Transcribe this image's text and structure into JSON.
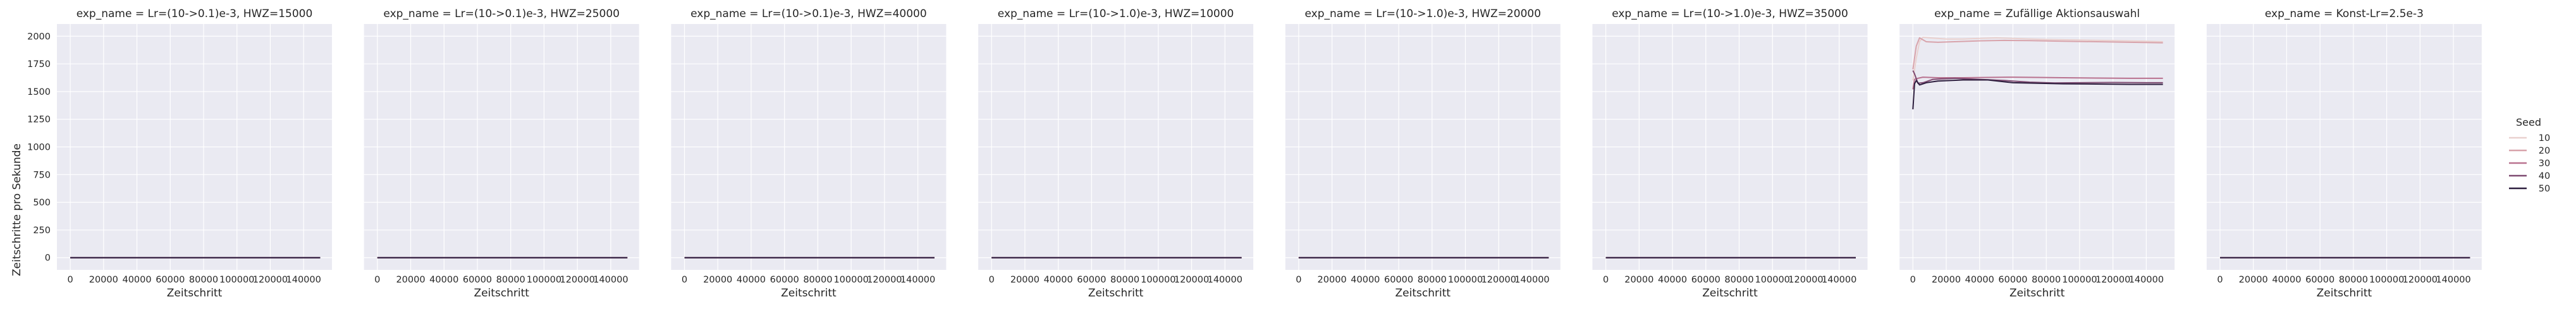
{
  "chart_data": {
    "type": "line",
    "ylabel": "Zeitschritte pro Sekunde",
    "xlabel": "Zeitschritt",
    "xlim": [
      -8000,
      157000
    ],
    "ylim": [
      -110,
      2110
    ],
    "x_ticks": [
      0,
      20000,
      40000,
      60000,
      80000,
      100000,
      120000,
      140000
    ],
    "x_tick_labels": [
      "0",
      "20000",
      "40000",
      "60000",
      "80000",
      "100000",
      "120000",
      "140000"
    ],
    "y_ticks": [
      0,
      250,
      500,
      750,
      1000,
      1250,
      1500,
      1750,
      2000
    ],
    "y_tick_labels": [
      "0",
      "250",
      "500",
      "750",
      "1000",
      "1250",
      "1500",
      "1750",
      "2000"
    ],
    "legend": {
      "title": "Seed",
      "placement": "right",
      "entries": [
        {
          "label": "10",
          "color": "#ead1cf"
        },
        {
          "label": "20",
          "color": "#d8a3ab"
        },
        {
          "label": "30",
          "color": "#b9728f"
        },
        {
          "label": "40",
          "color": "#7e4a71"
        },
        {
          "label": "50",
          "color": "#2d1e3e"
        }
      ]
    },
    "panels": [
      {
        "title": "exp_name = Lr=(10->0.1)e-3, HWZ=15000",
        "series": [
          {
            "name": "10",
            "x": [
              0,
              150000
            ],
            "y": [
              0,
              0
            ]
          },
          {
            "name": "20",
            "x": [
              0,
              150000
            ],
            "y": [
              0,
              0
            ]
          },
          {
            "name": "30",
            "x": [
              0,
              150000
            ],
            "y": [
              0,
              0
            ]
          },
          {
            "name": "40",
            "x": [
              0,
              150000
            ],
            "y": [
              0,
              0
            ]
          },
          {
            "name": "50",
            "x": [
              0,
              150000
            ],
            "y": [
              0,
              0
            ]
          }
        ]
      },
      {
        "title": "exp_name = Lr=(10->0.1)e-3, HWZ=25000",
        "series": [
          {
            "name": "10",
            "x": [
              0,
              150000
            ],
            "y": [
              0,
              0
            ]
          },
          {
            "name": "20",
            "x": [
              0,
              150000
            ],
            "y": [
              0,
              0
            ]
          },
          {
            "name": "30",
            "x": [
              0,
              150000
            ],
            "y": [
              0,
              0
            ]
          },
          {
            "name": "40",
            "x": [
              0,
              150000
            ],
            "y": [
              0,
              0
            ]
          },
          {
            "name": "50",
            "x": [
              0,
              150000
            ],
            "y": [
              0,
              0
            ]
          }
        ]
      },
      {
        "title": "exp_name = Lr=(10->0.1)e-3, HWZ=40000",
        "series": [
          {
            "name": "10",
            "x": [
              0,
              150000
            ],
            "y": [
              0,
              0
            ]
          },
          {
            "name": "20",
            "x": [
              0,
              150000
            ],
            "y": [
              0,
              0
            ]
          },
          {
            "name": "30",
            "x": [
              0,
              150000
            ],
            "y": [
              0,
              0
            ]
          },
          {
            "name": "40",
            "x": [
              0,
              150000
            ],
            "y": [
              0,
              0
            ]
          },
          {
            "name": "50",
            "x": [
              0,
              150000
            ],
            "y": [
              0,
              0
            ]
          }
        ]
      },
      {
        "title": "exp_name = Lr=(10->1.0)e-3, HWZ=10000",
        "series": [
          {
            "name": "10",
            "x": [
              0,
              150000
            ],
            "y": [
              0,
              0
            ]
          },
          {
            "name": "20",
            "x": [
              0,
              150000
            ],
            "y": [
              0,
              0
            ]
          },
          {
            "name": "30",
            "x": [
              0,
              150000
            ],
            "y": [
              0,
              0
            ]
          },
          {
            "name": "40",
            "x": [
              0,
              150000
            ],
            "y": [
              0,
              0
            ]
          },
          {
            "name": "50",
            "x": [
              0,
              150000
            ],
            "y": [
              0,
              0
            ]
          }
        ]
      },
      {
        "title": "exp_name = Lr=(10->1.0)e-3, HWZ=20000",
        "series": [
          {
            "name": "10",
            "x": [
              0,
              150000
            ],
            "y": [
              0,
              0
            ]
          },
          {
            "name": "20",
            "x": [
              0,
              150000
            ],
            "y": [
              0,
              0
            ]
          },
          {
            "name": "30",
            "x": [
              0,
              150000
            ],
            "y": [
              0,
              0
            ]
          },
          {
            "name": "40",
            "x": [
              0,
              150000
            ],
            "y": [
              0,
              0
            ]
          },
          {
            "name": "50",
            "x": [
              0,
              150000
            ],
            "y": [
              0,
              0
            ]
          }
        ]
      },
      {
        "title": "exp_name = Lr=(10->1.0)e-3, HWZ=35000",
        "series": [
          {
            "name": "10",
            "x": [
              0,
              150000
            ],
            "y": [
              0,
              0
            ]
          },
          {
            "name": "20",
            "x": [
              0,
              150000
            ],
            "y": [
              0,
              0
            ]
          },
          {
            "name": "30",
            "x": [
              0,
              150000
            ],
            "y": [
              0,
              0
            ]
          },
          {
            "name": "40",
            "x": [
              0,
              150000
            ],
            "y": [
              0,
              0
            ]
          },
          {
            "name": "50",
            "x": [
              0,
              150000
            ],
            "y": [
              0,
              0
            ]
          }
        ]
      },
      {
        "title": "exp_name = Zufällige Aktionsauswahl",
        "series": [
          {
            "name": "10",
            "x": [
              0,
              2000,
              4000,
              6000,
              10000,
              20000,
              30000,
              40000,
              50000,
              60000,
              80000,
              100000,
              120000,
              140000,
              150000
            ],
            "y": [
              1600,
              1800,
              1950,
              1990,
              1985,
              1975,
              1975,
              1980,
              1985,
              1980,
              1970,
              1965,
              1960,
              1955,
              1950
            ]
          },
          {
            "name": "20",
            "x": [
              0,
              2000,
              4000,
              8000,
              15000,
              25000,
              40000,
              55000,
              70000,
              90000,
              110000,
              130000,
              150000
            ],
            "y": [
              1700,
              1910,
              1985,
              1950,
              1945,
              1950,
              1958,
              1962,
              1960,
              1955,
              1950,
              1945,
              1940
            ]
          },
          {
            "name": "30",
            "x": [
              0,
              1000,
              3000,
              6000,
              15000,
              30000,
              45000,
              60000,
              75000,
              90000,
              110000,
              130000,
              150000
            ],
            "y": [
              1520,
              1610,
              1620,
              1630,
              1625,
              1625,
              1628,
              1630,
              1628,
              1625,
              1622,
              1620,
              1620
            ]
          },
          {
            "name": "40",
            "x": [
              0,
              1000,
              3000,
              6000,
              12000,
              25000,
              40000,
              55000,
              70000,
              85000,
              100000,
              120000,
              140000,
              150000
            ],
            "y": [
              1690,
              1660,
              1575,
              1580,
              1610,
              1620,
              1610,
              1600,
              1585,
              1578,
              1580,
              1582,
              1580,
              1580
            ]
          },
          {
            "name": "50",
            "x": [
              0,
              1000,
              2000,
              4000,
              8000,
              15000,
              30000,
              45000,
              60000,
              75000,
              90000,
              110000,
              130000,
              150000
            ],
            "y": [
              1340,
              1570,
              1600,
              1560,
              1580,
              1595,
              1605,
              1605,
              1580,
              1575,
              1570,
              1568,
              1565,
              1565
            ]
          }
        ]
      },
      {
        "title": "exp_name = Konst-Lr=2.5e-3",
        "series": [
          {
            "name": "10",
            "x": [
              0,
              150000
            ],
            "y": [
              0,
              0
            ]
          },
          {
            "name": "20",
            "x": [
              0,
              150000
            ],
            "y": [
              0,
              0
            ]
          },
          {
            "name": "30",
            "x": [
              0,
              150000
            ],
            "y": [
              0,
              0
            ]
          },
          {
            "name": "40",
            "x": [
              0,
              150000
            ],
            "y": [
              0,
              0
            ]
          },
          {
            "name": "50",
            "x": [
              0,
              150000
            ],
            "y": [
              0,
              0
            ]
          }
        ]
      }
    ]
  }
}
